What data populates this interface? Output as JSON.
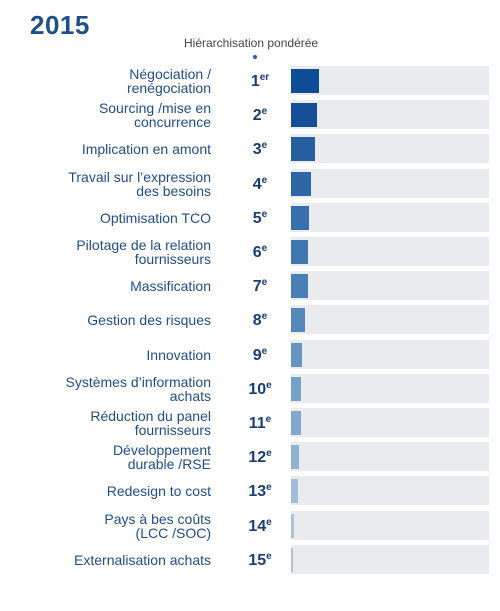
{
  "title": "2015",
  "subtitle": "Hiérarchisation pondérée",
  "chart_data": {
    "type": "bar",
    "orientation": "horizontal",
    "title": "2015",
    "subtitle": "Hiérarchisation pondérée",
    "categories": [
      "Négociation / renégociation",
      "Sourcing /mise en concurrence",
      "Implication en amont",
      "Travail sur l’expression des besoins",
      "Optimisation TCO",
      "Pilotage de la relation fournisseurs",
      "Massification",
      "Gestion des risques",
      "Innovation",
      "Systèmes d’information achats",
      "Réduction du panel fournisseurs",
      "Développement durable /RSE",
      "Redesign to cost",
      "Pays à bes coûts (LCC /SOC)",
      "Externalisation achats"
    ],
    "label_lines": [
      [
        "Négociation /",
        "renégociation"
      ],
      [
        "Sourcing /mise en",
        "concurrence"
      ],
      [
        "Implication en amont"
      ],
      [
        "Travail sur l’expression",
        "des besoins"
      ],
      [
        "Optimisation TCO"
      ],
      [
        "Pilotage de la relation",
        "fournisseurs"
      ],
      [
        "Massification"
      ],
      [
        "Gestion des risques"
      ],
      [
        "Innovation"
      ],
      [
        "Systèmes d’information",
        "achats"
      ],
      [
        "Réduction du panel",
        "fournisseurs"
      ],
      [
        "Développement",
        "durable /RSE"
      ],
      [
        "Redesign to cost"
      ],
      [
        "Pays à bes coûts",
        "(LCC /SOC)"
      ],
      [
        "Externalisation achats"
      ]
    ],
    "ranks": [
      {
        "num": "1",
        "sup": "er"
      },
      {
        "num": "2",
        "sup": "e"
      },
      {
        "num": "3",
        "sup": "e"
      },
      {
        "num": "4",
        "sup": "e"
      },
      {
        "num": "5",
        "sup": "e"
      },
      {
        "num": "6",
        "sup": "e"
      },
      {
        "num": "7",
        "sup": "e"
      },
      {
        "num": "8",
        "sup": "e"
      },
      {
        "num": "9",
        "sup": "e"
      },
      {
        "num": "10",
        "sup": "e"
      },
      {
        "num": "11",
        "sup": "e"
      },
      {
        "num": "12",
        "sup": "e"
      },
      {
        "num": "13",
        "sup": "e"
      },
      {
        "num": "14",
        "sup": "e"
      },
      {
        "num": "15",
        "sup": "e"
      }
    ],
    "values": [
      14,
      13,
      12,
      10,
      9,
      8.5,
      8.5,
      7,
      5.5,
      5,
      5,
      4,
      3.5,
      1.5,
      1
    ],
    "xlim": [
      0,
      100
    ],
    "colors": [
      "#0f4c96",
      "#154f99",
      "#285f9f",
      "#2f66a6",
      "#3770ad",
      "#3f76b0",
      "#4a7fb5",
      "#5587bb",
      "#6795c2",
      "#75a0c8",
      "#82a9cd",
      "#91b3d2",
      "#9fbdd8",
      "#a8c3dc",
      "#a8c3dc"
    ]
  }
}
